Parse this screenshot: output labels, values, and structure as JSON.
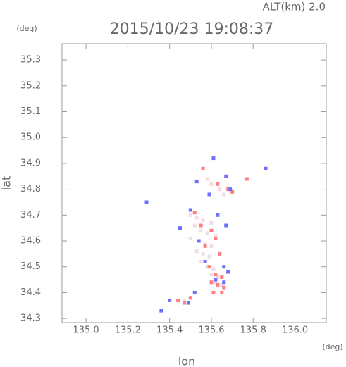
{
  "chart_data": {
    "type": "scatter",
    "title": "2015/10/23 19:08:37",
    "subtitle": "ALT(km) 2.0",
    "x_label": "lon",
    "y_label": "lat",
    "x_unit": "(deg)",
    "y_unit": "(deg)",
    "xlim": [
      134.885,
      136.15
    ],
    "ylim": [
      34.284,
      35.363
    ],
    "xticks": [
      {
        "value": 135.0,
        "label": "135.0"
      },
      135.2,
      135.4,
      135.6,
      135.8,
      {
        "value": 136.0,
        "label": "136.0"
      }
    ],
    "yticks": [
      34.3,
      34.4,
      34.5,
      34.6,
      34.7,
      34.8,
      34.9,
      {
        "value": 35.0,
        "label": "35.0"
      },
      35.1,
      35.2,
      35.3
    ],
    "series": [
      {
        "color": "#f2dde6",
        "x": [
          135.5,
          135.53,
          135.56,
          135.6,
          135.52,
          135.55,
          135.58,
          135.62,
          135.5,
          135.54,
          135.57,
          135.6,
          135.53,
          135.56,
          135.59,
          135.55,
          135.58,
          135.61,
          135.6,
          135.63,
          135.62,
          135.65,
          135.5,
          135.47,
          135.58,
          135.6,
          135.64,
          135.66
        ],
        "values": [
          34.7,
          34.69,
          34.68,
          34.67,
          34.66,
          34.64,
          34.63,
          34.62,
          34.61,
          34.6,
          34.59,
          34.58,
          34.56,
          34.55,
          34.54,
          34.52,
          34.5,
          34.49,
          34.47,
          34.46,
          34.44,
          34.43,
          34.38,
          34.37,
          34.84,
          34.82,
          34.8,
          34.78
        ]
      },
      {
        "color": "#ff7f7f",
        "x": [
          135.52,
          135.55,
          135.6,
          135.62,
          135.57,
          135.64,
          135.59,
          135.62,
          135.65,
          135.6,
          135.63,
          135.66,
          135.61,
          135.65,
          135.44,
          135.47,
          135.5,
          135.68,
          135.77,
          135.56,
          135.63,
          135.7
        ],
        "values": [
          34.71,
          34.66,
          34.64,
          34.61,
          34.58,
          34.55,
          34.5,
          34.47,
          34.46,
          34.44,
          34.43,
          34.42,
          34.4,
          34.4,
          34.37,
          34.36,
          34.38,
          34.8,
          34.84,
          34.88,
          34.82,
          34.79
        ]
      },
      {
        "color": "#6f6fff",
        "x": [
          135.5,
          135.63,
          135.67,
          135.45,
          135.54,
          135.57,
          135.66,
          135.68,
          135.62,
          135.66,
          135.52,
          135.36,
          135.49,
          135.4,
          135.29,
          135.59,
          135.67,
          135.86,
          135.53,
          135.61,
          135.69
        ],
        "values": [
          34.72,
          34.7,
          34.66,
          34.65,
          34.6,
          34.52,
          34.5,
          34.48,
          34.45,
          34.44,
          34.4,
          34.33,
          34.36,
          34.37,
          34.75,
          34.78,
          34.85,
          34.88,
          34.83,
          34.92,
          34.8
        ]
      }
    ]
  }
}
